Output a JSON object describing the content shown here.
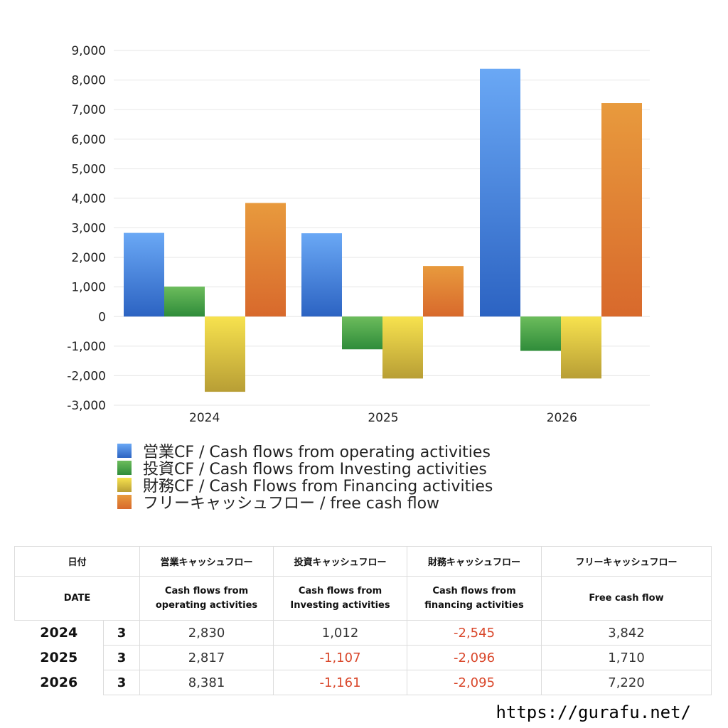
{
  "colors": {
    "operating": [
      "#6aa8f5",
      "#2c63c2"
    ],
    "investing": [
      "#6cbc5c",
      "#2f8c3a"
    ],
    "financing": [
      "#f7e24e",
      "#b89e35"
    ],
    "free": [
      "#e89a3d",
      "#d8692c"
    ],
    "negative_text": "#d9472b"
  },
  "chart_data": {
    "type": "bar",
    "categories": [
      "2024",
      "2025",
      "2026"
    ],
    "ylim": [
      -3000,
      9000
    ],
    "yticks": [
      "9,000",
      "8,000",
      "7,000",
      "6,000",
      "5,000",
      "4,000",
      "3,000",
      "2,000",
      "1,000",
      "0",
      "-1,000",
      "-2,000",
      "-3,000"
    ],
    "ytick_values": [
      9000,
      8000,
      7000,
      6000,
      5000,
      4000,
      3000,
      2000,
      1000,
      0,
      -1000,
      -2000,
      -3000
    ],
    "grid": true,
    "legend_position": "bottom-left",
    "series": [
      {
        "name": "営業CF / Cash flows from operating activities",
        "values": [
          2830,
          2817,
          8381
        ]
      },
      {
        "name": "投資CF / Cash flows from Investing activities",
        "values": [
          1012,
          -1107,
          -1161
        ]
      },
      {
        "name": "財務CF / Cash Flows from Financing activities",
        "values": [
          -2545,
          -2096,
          -2095
        ]
      },
      {
        "name": "フリーキャッシュフロー / free cash flow",
        "values": [
          3842,
          1710,
          7220
        ]
      }
    ]
  },
  "table": {
    "header_jp": [
      "日付",
      "営業キャッシュフロー",
      "投資キャッシュフロー",
      "財務キャッシュフロー",
      "フリーキャッシュフロー"
    ],
    "header_en": {
      "date": "DATE",
      "operating": [
        "Cash flows from",
        "operating activities"
      ],
      "investing": [
        "Cash flows from",
        "Investing activities"
      ],
      "financing": [
        "Cash flows from",
        "financing activities"
      ],
      "free": "Free cash flow"
    },
    "rows": [
      {
        "year": "2024",
        "month": "3",
        "operating": "2,830",
        "investing": "1,012",
        "financing": "-2,545",
        "free": "3,842"
      },
      {
        "year": "2025",
        "month": "3",
        "operating": "2,817",
        "investing": "-1,107",
        "financing": "-2,096",
        "free": "1,710"
      },
      {
        "year": "2026",
        "month": "3",
        "operating": "8,381",
        "investing": "-1,161",
        "financing": "-2,095",
        "free": "7,220"
      }
    ]
  },
  "footer": {
    "url": "https://gurafu.net/"
  }
}
